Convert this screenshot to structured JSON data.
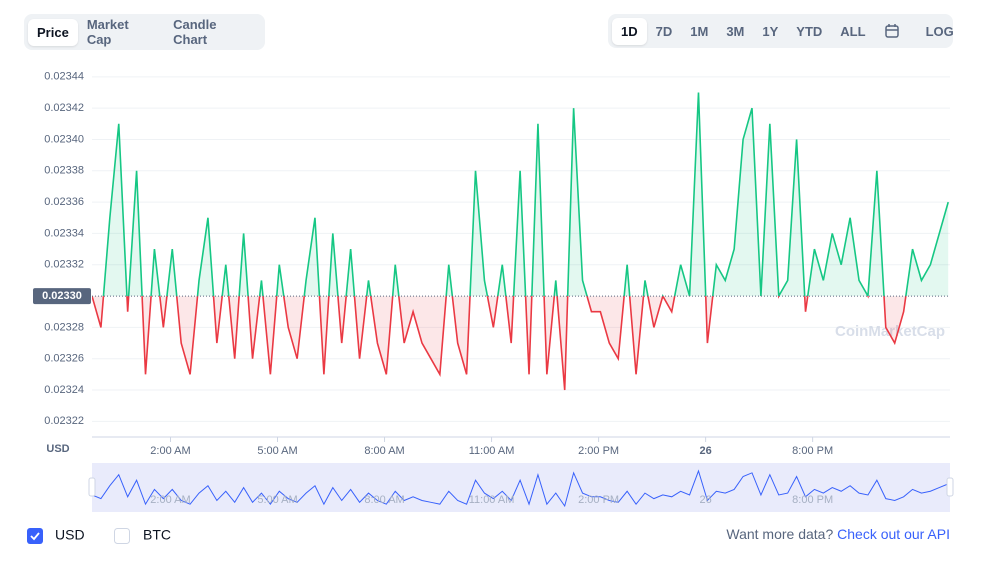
{
  "tabs": [
    "Price",
    "Market Cap",
    "Candle Chart"
  ],
  "active_tab": 0,
  "ranges": [
    "1D",
    "7D",
    "1M",
    "3M",
    "1Y",
    "YTD",
    "ALL"
  ],
  "active_range": 0,
  "log_button": "LOG",
  "chart_data": {
    "type": "line",
    "y_label": "USD",
    "watermark": "CoinMarketCap",
    "xlim": [
      -2.2,
      21.85
    ],
    "xticks": [
      {
        "value": 0,
        "label": "2:00 AM"
      },
      {
        "value": 3,
        "label": "5:00 AM"
      },
      {
        "value": 6,
        "label": "8:00 AM"
      },
      {
        "value": 9,
        "label": "11:00 AM"
      },
      {
        "value": 12,
        "label": "2:00 PM"
      },
      {
        "value": 15,
        "label": "26"
      },
      {
        "value": 18,
        "label": "8:00 PM"
      }
    ],
    "ylim": [
      0.02321,
      0.023445
    ],
    "yticks": [
      0.02322,
      0.02324,
      0.02326,
      0.02328,
      0.02332,
      0.02334,
      0.02336,
      0.02338,
      {
        "value": 0.0234,
        "label": "0.02340"
      },
      0.02342,
      0.02344
    ],
    "baseline": {
      "value": 0.0233,
      "label": "0.02330"
    },
    "up_color": "#16c784",
    "down_color": "#ea3943",
    "nav_color": "#3861fb",
    "x": [
      -2.2,
      -1.95,
      -1.7,
      -1.45,
      -1.2,
      -0.95,
      -0.7,
      -0.45,
      -0.2,
      0.05,
      0.3,
      0.55,
      0.8,
      1.05,
      1.3,
      1.55,
      1.8,
      2.05,
      2.3,
      2.55,
      2.8,
      3.05,
      3.3,
      3.55,
      3.8,
      4.05,
      4.3,
      4.55,
      4.8,
      5.05,
      5.3,
      5.55,
      5.8,
      6.05,
      6.3,
      6.55,
      6.8,
      7.05,
      7.3,
      7.55,
      7.8,
      8.05,
      8.3,
      8.55,
      8.8,
      9.05,
      9.3,
      9.55,
      9.8,
      10.05,
      10.3,
      10.55,
      10.8,
      11.05,
      11.3,
      11.55,
      11.8,
      12.05,
      12.3,
      12.55,
      12.8,
      13.05,
      13.3,
      13.55,
      13.8,
      14.05,
      14.3,
      14.55,
      14.8,
      15.05,
      15.3,
      15.55,
      15.8,
      16.05,
      16.3,
      16.55,
      16.8,
      17.05,
      17.3,
      17.55,
      17.8,
      18.05,
      18.3,
      18.55,
      18.8,
      19.05,
      19.3,
      19.55,
      19.8,
      20.05,
      20.3,
      20.55,
      20.8,
      21.05,
      21.3,
      21.55,
      21.8
    ],
    "series": [
      {
        "name": "USD",
        "values": [
          0.0233,
          0.02328,
          0.02335,
          0.02341,
          0.02329,
          0.02338,
          0.02325,
          0.02333,
          0.02328,
          0.02333,
          0.02327,
          0.02325,
          0.02331,
          0.02335,
          0.02327,
          0.02332,
          0.02326,
          0.02334,
          0.02326,
          0.02331,
          0.02325,
          0.02332,
          0.02328,
          0.02326,
          0.02331,
          0.02335,
          0.02325,
          0.02334,
          0.02327,
          0.02333,
          0.02326,
          0.02331,
          0.02327,
          0.02325,
          0.02332,
          0.02327,
          0.02329,
          0.02327,
          0.02326,
          0.02325,
          0.02332,
          0.02327,
          0.02325,
          0.02338,
          0.02331,
          0.02328,
          0.02332,
          0.02327,
          0.02338,
          0.02325,
          0.02341,
          0.02325,
          0.02331,
          0.02324,
          0.02342,
          0.02331,
          0.02329,
          0.02329,
          0.02327,
          0.02326,
          0.02332,
          0.02325,
          0.02331,
          0.02328,
          0.0233,
          0.02329,
          0.02332,
          0.0233,
          0.02343,
          0.02327,
          0.02332,
          0.02331,
          0.02333,
          0.0234,
          0.02342,
          0.0233,
          0.02341,
          0.0233,
          0.02331,
          0.0234,
          0.02329,
          0.02333,
          0.02331,
          0.02334,
          0.02332,
          0.02335,
          0.02331,
          0.0233,
          0.02338,
          0.02328,
          0.02327,
          0.02329,
          0.02333,
          0.02331,
          0.02332,
          0.02334,
          0.02336
        ]
      }
    ]
  },
  "legend": [
    "USD",
    "BTC"
  ],
  "footer": {
    "question": "Want more data?",
    "link": "Check out our API"
  }
}
